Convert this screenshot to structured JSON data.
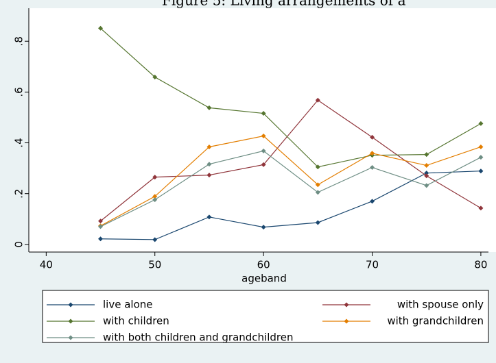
{
  "chart_data": {
    "type": "line",
    "title": "Figure 5: Living arrangements of a",
    "xlabel": "ageband",
    "x": [
      45,
      50,
      55,
      60,
      65,
      70,
      75,
      80
    ],
    "series": [
      {
        "name": "live alone",
        "color": "#1a476f",
        "values": [
          0.022,
          0.019,
          0.108,
          0.068,
          0.086,
          0.17,
          0.281,
          0.289
        ]
      },
      {
        "name": "with spouse only",
        "color": "#90353b",
        "values": [
          0.092,
          0.265,
          0.273,
          0.314,
          0.568,
          0.422,
          0.27,
          0.143
        ]
      },
      {
        "name": "with children",
        "color": "#55752f",
        "values": [
          0.851,
          0.659,
          0.538,
          0.516,
          0.305,
          0.351,
          0.354,
          0.476
        ]
      },
      {
        "name": "with grandchildren",
        "color": "#e37e00",
        "values": [
          0.073,
          0.189,
          0.384,
          0.427,
          0.235,
          0.359,
          0.311,
          0.384
        ]
      },
      {
        "name": "with both children and grandchildren",
        "color": "#6e8e84",
        "values": [
          0.07,
          0.176,
          0.316,
          0.368,
          0.205,
          0.303,
          0.232,
          0.343
        ]
      }
    ],
    "xlim": [
      38.4,
      80.7
    ],
    "ylim": [
      -0.03,
      0.93
    ],
    "xticks": [
      40,
      50,
      60,
      70,
      80
    ],
    "yticks": [
      0,
      {
        "value": 0.2,
        "label": ".2"
      },
      {
        "value": 0.4,
        "label": ".4"
      },
      {
        "value": 0.6,
        "label": ".6"
      },
      {
        "value": 0.8,
        "label": ".8"
      }
    ],
    "grid": false
  }
}
